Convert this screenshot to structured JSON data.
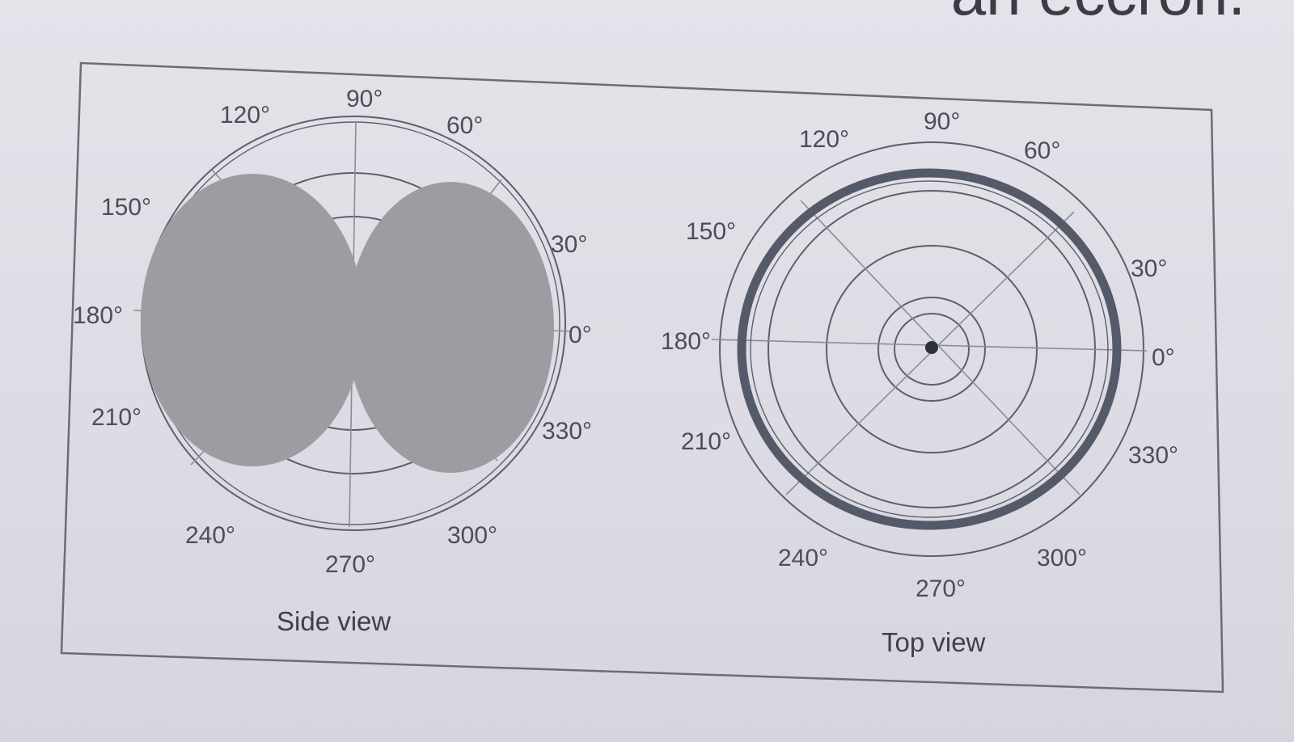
{
  "header_fragment": "an eccron.",
  "side_view": {
    "caption": "Side view",
    "angle_labels": [
      "0°",
      "30°",
      "60°",
      "90°",
      "120°",
      "150°",
      "180°",
      "210°",
      "240°",
      "270°",
      "300°",
      "330°"
    ],
    "pattern": "figure-eight (two filled lobes toward 0° and 180°)"
  },
  "top_view": {
    "caption": "Top view",
    "angle_labels": [
      "0°",
      "30°",
      "60°",
      "90°",
      "120°",
      "150°",
      "180°",
      "210°",
      "240°",
      "270°",
      "300°",
      "330°"
    ],
    "pattern": "omnidirectional (thick circle)"
  },
  "colors": {
    "background": "#e0dfe6",
    "frame": "#6a6d76",
    "lobe_fill": "#9d9ca3",
    "pattern_ring": "#555a68",
    "grid": "#5c606a",
    "text": "#4b4e58"
  }
}
